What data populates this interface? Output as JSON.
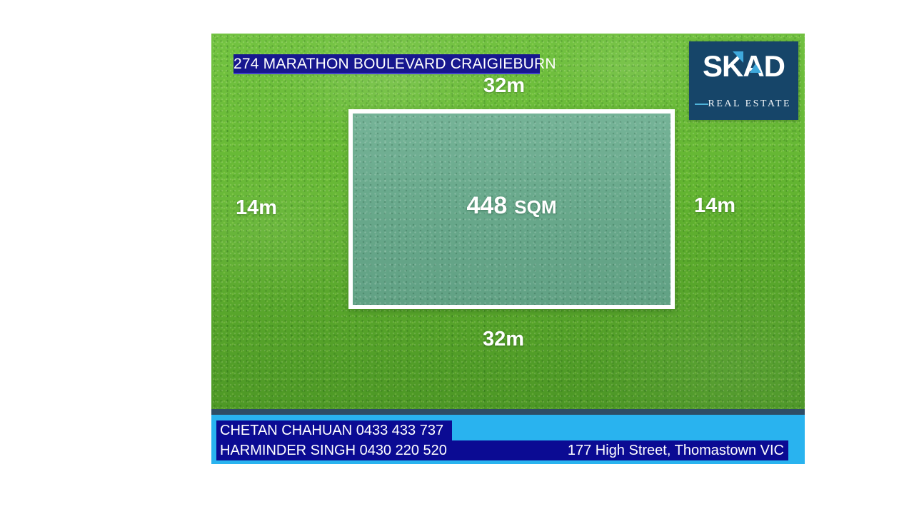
{
  "poster": {
    "title": "274 MARATHON BOULEVARD CRAIGIEBURN",
    "dim_top": "32m",
    "dim_bottom": "32m",
    "dim_left": "14m",
    "dim_right": "14m",
    "area_value": "448",
    "area_unit": "SQM",
    "logo": {
      "brand": "SKAD",
      "tagline": "REAL ESTATE"
    },
    "footer": {
      "agent_line1": "CHETAN CHAHUAN 0433 433 737",
      "agent_line2": "HARMINDER SINGH 0430 220 520",
      "address": "177 High Street, Thomastown VIC"
    },
    "colors": {
      "title_bg": "#17178f",
      "highlight_bg": "#0b0b93",
      "footer_bg": "#29b3ef",
      "footer_strip": "#2e4d66",
      "logo_bg": "#164569",
      "logo_accent": "#3fa9dc",
      "grass_green": "#5eb02f",
      "plot_teal": "#69aa8d",
      "text_white": "#ffffff"
    }
  }
}
